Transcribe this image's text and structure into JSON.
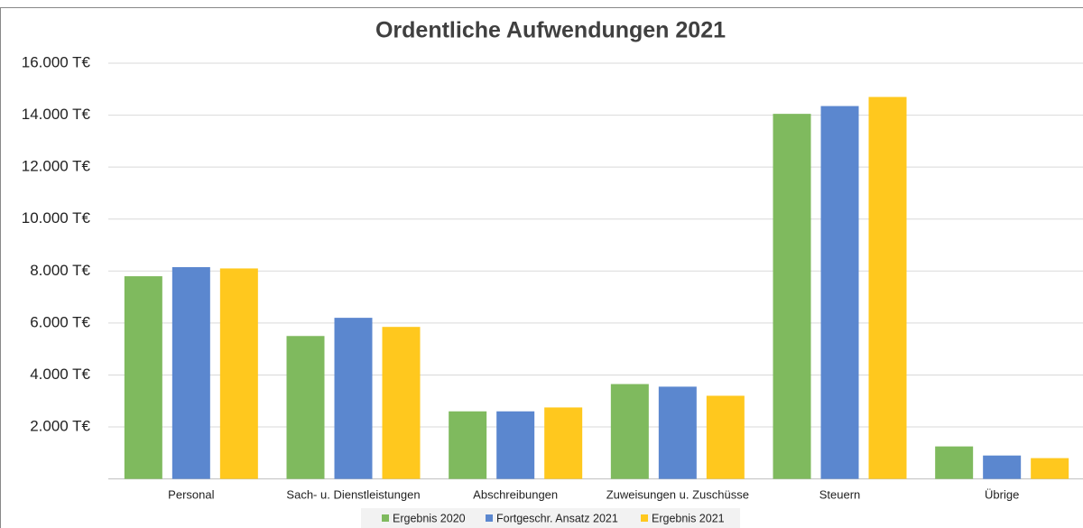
{
  "chart_data": {
    "type": "bar",
    "title": "Ordentliche Aufwendungen 2021",
    "categories": [
      "Personal",
      "Sach- u. Dienstleistungen",
      "Abschreibungen",
      "Zuweisungen u. Zuschüsse",
      "Steuern",
      "Übrige"
    ],
    "series": [
      {
        "name": "Ergebnis 2020",
        "color": "#7fba5e",
        "values": [
          7800,
          5500,
          2600,
          3650,
          14050,
          1250
        ]
      },
      {
        "name": "Fortgeschr. Ansatz 2021",
        "color": "#5b87cf",
        "values": [
          8150,
          6200,
          2600,
          3550,
          14350,
          900
        ]
      },
      {
        "name": "Ergebnis 2021",
        "color": "#ffc81e",
        "values": [
          8100,
          5850,
          2750,
          3200,
          14700,
          800
        ]
      }
    ],
    "ylim": [
      0,
      16000
    ],
    "yticks": [
      {
        "value": 2000,
        "label": "2.000 T€"
      },
      {
        "value": 4000,
        "label": "4.000 T€"
      },
      {
        "value": 6000,
        "label": "6.000 T€"
      },
      {
        "value": 8000,
        "label": "8.000 T€"
      },
      {
        "value": 10000,
        "label": "10.000 T€"
      },
      {
        "value": 12000,
        "label": "12.000 T€"
      },
      {
        "value": 14000,
        "label": "14.000 T€"
      },
      {
        "value": 16000,
        "label": "16.000 T€"
      }
    ],
    "grid": true,
    "legend": "bottom"
  }
}
